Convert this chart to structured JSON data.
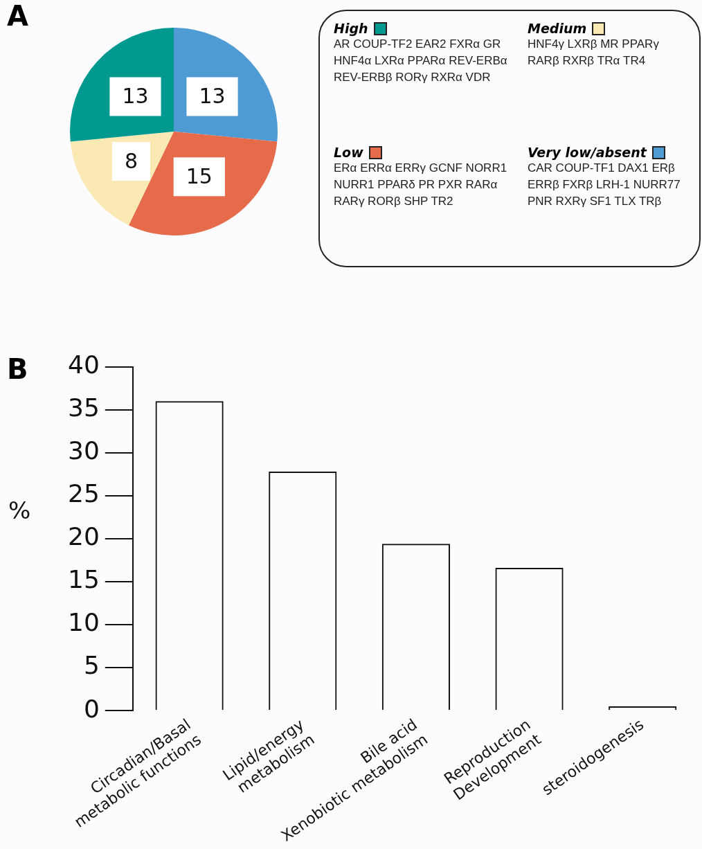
{
  "chart_data": [
    {
      "type": "pie",
      "title": "A",
      "categories": [
        "Very low/absent",
        "Low",
        "Medium",
        "High"
      ],
      "values": [
        13,
        15,
        8,
        13
      ],
      "colors": [
        "#4f9bd4",
        "#e56b4b",
        "#fbe9b3",
        "#009990"
      ],
      "data_labels": true,
      "legend": "right",
      "annotations": [
        "CAR  COUP-TF1  DAX1 ERβ ERRβ FXRβ LRH-1 NURR77  PNR RXRγ SF1  TLX  TRβ",
        "ERα ERRα ERRγ GCNF NORR1 NURR1 PPARδ PR  PXR  RARα RARγ RORβ SHP  TR2",
        "HNF4γ  LXRβ  MR PPARγ RARβ RXRβ TRα TR4",
        "AR  COUP-TF2  EAR2 FXRα GR HNF4α LXRα PPARα REV-ERBα REV-ERBβ RORγ RXRα VDR"
      ]
    },
    {
      "type": "bar",
      "title": "B",
      "ylabel": "%",
      "categories": [
        "Circadian/Basal\nmetabolic functions",
        "Lipid/energy\nmetabolism",
        "Bile acid\nXenobiotic metabolism",
        "Reproduction\nDevelopment",
        "steroidogenesis"
      ],
      "values": [
        36,
        27.8,
        19.4,
        16.6,
        0.5
      ],
      "color": "#111111",
      "ylim": [
        0,
        40
      ],
      "yticks": [
        0,
        5,
        10,
        15,
        20,
        25,
        30,
        35,
        40
      ],
      "grid": false
    }
  ]
}
